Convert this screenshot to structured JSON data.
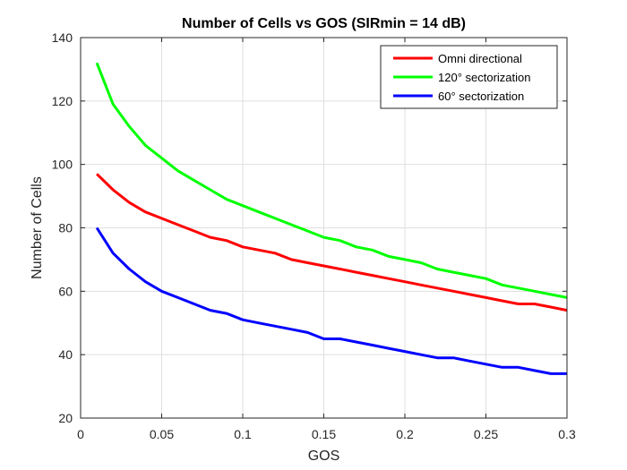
{
  "chart_data": {
    "type": "line",
    "title": "Number of Cells vs GOS (SIRmin = 14 dB)",
    "xlabel": "GOS",
    "ylabel": "Number of Cells",
    "xlim": [
      0,
      0.3
    ],
    "ylim": [
      20,
      140
    ],
    "xticks": [
      0,
      0.05,
      0.1,
      0.15,
      0.2,
      0.25,
      0.3
    ],
    "xtick_labels": [
      "0",
      "0.05",
      "0.1",
      "0.15",
      "0.2",
      "0.25",
      "0.3"
    ],
    "yticks": [
      20,
      40,
      60,
      80,
      100,
      120,
      140
    ],
    "ytick_labels": [
      "20",
      "40",
      "60",
      "80",
      "100",
      "120",
      "140"
    ],
    "grid": true,
    "legend_position": "top-right",
    "x": [
      0.01,
      0.02,
      0.03,
      0.04,
      0.05,
      0.06,
      0.07,
      0.08,
      0.09,
      0.1,
      0.11,
      0.12,
      0.13,
      0.14,
      0.15,
      0.16,
      0.17,
      0.18,
      0.19,
      0.2,
      0.21,
      0.22,
      0.23,
      0.24,
      0.25,
      0.26,
      0.27,
      0.28,
      0.29,
      0.3
    ],
    "series": [
      {
        "name": "Omni directional",
        "color": "#ff0000",
        "values": [
          97,
          92,
          88,
          85,
          83,
          81,
          79,
          77,
          76,
          74,
          73,
          72,
          70,
          69,
          68,
          67,
          66,
          65,
          64,
          63,
          62,
          61,
          60,
          59,
          58,
          57,
          56,
          56,
          55,
          54
        ]
      },
      {
        "name": "120° sectorization",
        "color": "#00ff00",
        "values": [
          132,
          119,
          112,
          106,
          102,
          98,
          95,
          92,
          89,
          87,
          85,
          83,
          81,
          79,
          77,
          76,
          74,
          73,
          71,
          70,
          69,
          67,
          66,
          65,
          64,
          62,
          61,
          60,
          59,
          58
        ]
      },
      {
        "name": "60° sectorization",
        "color": "#0000ff",
        "values": [
          80,
          72,
          67,
          63,
          60,
          58,
          56,
          54,
          53,
          51,
          50,
          49,
          48,
          47,
          45,
          45,
          44,
          43,
          42,
          41,
          40,
          39,
          39,
          38,
          37,
          36,
          36,
          35,
          34,
          34
        ]
      }
    ]
  }
}
